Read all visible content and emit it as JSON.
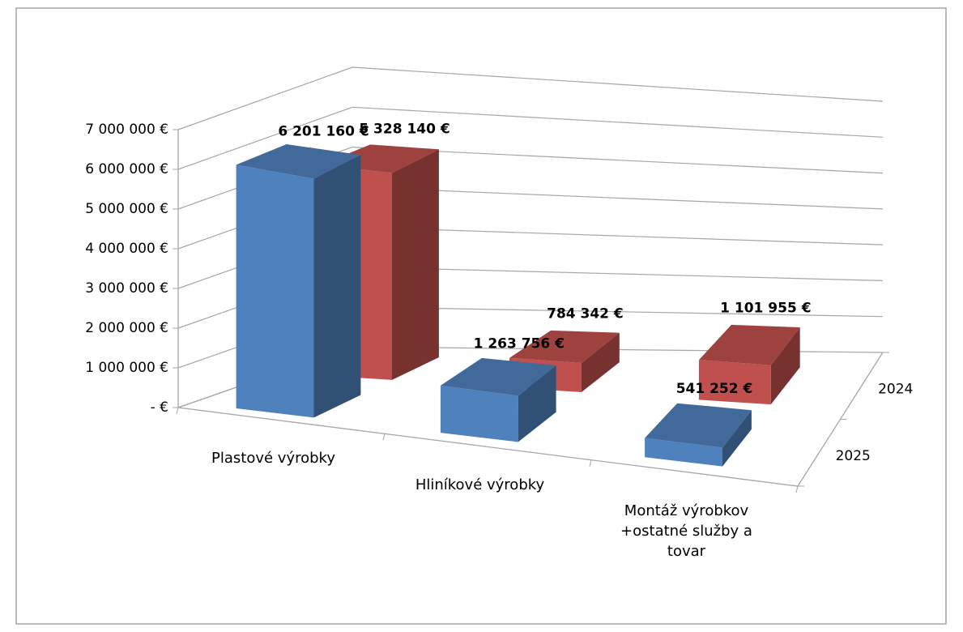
{
  "chart_data": {
    "type": "bar3d",
    "categories": [
      "Plastové výrobky",
      "Hliníkové výrobky",
      "Montáž výrobkov +ostatné služby a tovar"
    ],
    "series": [
      {
        "name": "2025",
        "color": "#4f81bd",
        "values": [
          6201160,
          1263756,
          541252
        ],
        "value_labels": [
          "6 201 160 €",
          "1 263 756 €",
          "541 252 €"
        ]
      },
      {
        "name": "2024",
        "color": "#c0504d",
        "values": [
          5328140,
          784342,
          1101955
        ],
        "value_labels": [
          "5 328 140 €",
          "784 342 €",
          "1 101 955 €"
        ]
      }
    ],
    "ylim": [
      0,
      7000000
    ],
    "yticks": [
      {
        "value": 0,
        "label": "-  €"
      },
      {
        "value": 1000000,
        "label": "1 000 000 €"
      },
      {
        "value": 2000000,
        "label": "2 000 000 €"
      },
      {
        "value": 3000000,
        "label": "3 000 000 €"
      },
      {
        "value": 4000000,
        "label": "4 000 000 €"
      },
      {
        "value": 5000000,
        "label": "5 000 000 €"
      },
      {
        "value": 6000000,
        "label": "6 000 000 €"
      },
      {
        "value": 7000000,
        "label": "7 000 000 €"
      }
    ],
    "grid": true
  }
}
